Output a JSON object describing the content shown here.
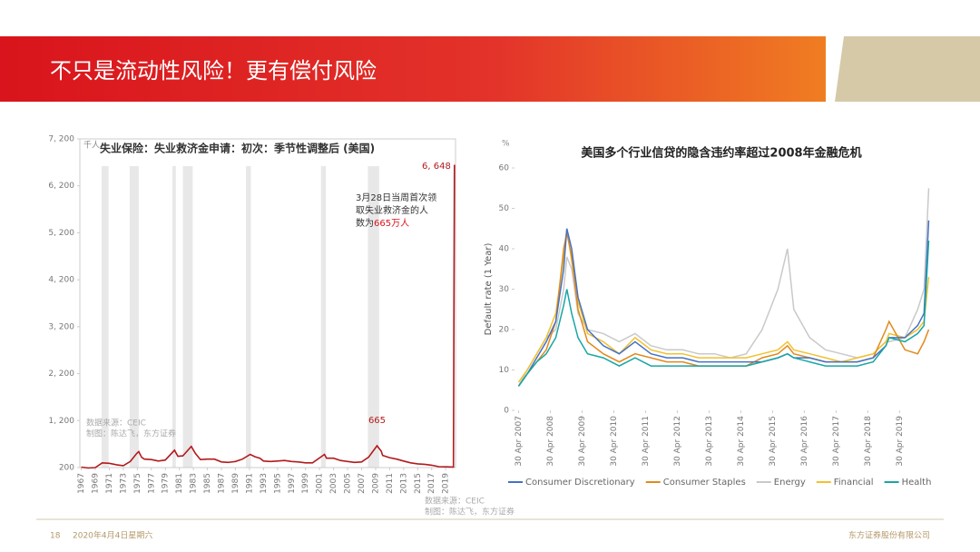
{
  "header": {
    "title": "不只是流动性风险！更有偿付风险"
  },
  "footer": {
    "page": "18",
    "date": "2020年4月4日星期六",
    "company": "东方证券股份有限公司"
  },
  "chart_data": [
    {
      "type": "line",
      "title": "失业保险：失业救济金申请：初次：季节性调整后 (美国)",
      "unit": "千人",
      "source": [
        "数据来源：CEIC",
        "制图：陈达飞，东方证券"
      ],
      "callout": [
        "3月28日当周首次领",
        "取失业救济金的人",
        "数为",
        "665万人"
      ],
      "xlim": [
        1966.8,
        2020.4
      ],
      "ylim": [
        200,
        7200
      ],
      "yticks": [
        200,
        {
          "value": 1200,
          "label": "1, 200"
        },
        {
          "value": 2200,
          "label": "2, 200"
        },
        {
          "value": 3200,
          "label": "3, 200"
        },
        {
          "value": 4200,
          "label": "4, 200"
        },
        {
          "value": 5200,
          "label": "5, 200"
        },
        {
          "value": 6200,
          "label": "6, 200"
        },
        {
          "value": 7200,
          "label": "7, 200"
        }
      ],
      "xticks": [
        1967,
        1969,
        1971,
        1973,
        1975,
        1977,
        1979,
        1981,
        1983,
        1985,
        1987,
        1989,
        1991,
        1993,
        1995,
        1997,
        1999,
        2001,
        2003,
        2005,
        2007,
        2009,
        2011,
        2013,
        2015,
        2017,
        2019
      ],
      "shaded_periods": [
        [
          1969.9,
          1970.9
        ],
        [
          1973.9,
          1975.2
        ],
        [
          1980.0,
          1980.5
        ],
        [
          1981.5,
          1982.9
        ],
        [
          1990.5,
          1991.2
        ],
        [
          2001.2,
          2001.9
        ],
        [
          2007.9,
          2009.5
        ]
      ],
      "x": [
        1967,
        1968,
        1969,
        1970,
        1971,
        1972,
        1973,
        1974,
        1974.9,
        1975.2,
        1975.6,
        1976,
        1977,
        1978,
        1979,
        1980.3,
        1980.8,
        1981.5,
        1982.7,
        1983.3,
        1984,
        1985,
        1986,
        1987,
        1988,
        1989,
        1990,
        1991.1,
        1991.8,
        1992.5,
        1993,
        1994,
        1995,
        1996,
        1997,
        1998,
        1999,
        2000,
        2001.7,
        2002,
        2003,
        2004,
        2005,
        2006,
        2007,
        2008,
        2009.2,
        2009.8,
        2010,
        2011,
        2012,
        2013,
        2014,
        2015,
        2016,
        2017,
        2018,
        2019,
        2020.1,
        2020.17,
        2020.25
      ],
      "series": [
        {
          "color": "#b3191c",
          "values": [
            210,
            190,
            200,
            300,
            290,
            260,
            240,
            330,
            500,
            540,
            420,
            380,
            370,
            340,
            360,
            570,
            440,
            450,
            650,
            500,
            370,
            380,
            380,
            320,
            310,
            330,
            380,
            480,
            430,
            400,
            340,
            330,
            340,
            350,
            330,
            320,
            300,
            300,
            480,
            400,
            400,
            350,
            330,
            310,
            320,
            420,
            665,
            550,
            460,
            410,
            380,
            340,
            300,
            280,
            270,
            250,
            220,
            215,
            211,
            3307,
            6648
          ],
          "value_labels": [
            null,
            null,
            null,
            null,
            null,
            null,
            null,
            null,
            null,
            null,
            null,
            null,
            null,
            null,
            null,
            null,
            null,
            null,
            null,
            null,
            null,
            null,
            null,
            null,
            null,
            null,
            null,
            null,
            null,
            null,
            null,
            null,
            null,
            null,
            null,
            null,
            null,
            null,
            null,
            null,
            null,
            null,
            null,
            null,
            null,
            null,
            "665",
            null,
            null,
            null,
            null,
            null,
            null,
            null,
            null,
            null,
            null,
            null,
            null,
            null,
            "6, 648"
          ]
        }
      ]
    },
    {
      "type": "line",
      "title": "美国多个行业信贷的隐含违约率超过2008年金融危机",
      "unit": "%",
      "ylabel": "Default rate (1 Year)",
      "source": [
        "数据来源：CEIC",
        "制图：陈达飞，东方证券"
      ],
      "xlim": [
        2007.2,
        2020.35
      ],
      "ylim": [
        0,
        60
      ],
      "yticks": [
        0,
        10,
        20,
        30,
        40,
        50,
        60
      ],
      "xticks": [
        {
          "value": 2007.33,
          "label": "30 Apr 2007"
        },
        {
          "value": 2008.33,
          "label": "30 Apr 2008"
        },
        {
          "value": 2009.33,
          "label": "30 Apr 2009"
        },
        {
          "value": 2010.33,
          "label": "30 Apr 2010"
        },
        {
          "value": 2011.33,
          "label": "30 Apr 2011"
        },
        {
          "value": 2012.33,
          "label": "30 Apr 2012"
        },
        {
          "value": 2013.33,
          "label": "30 Apr 2013"
        },
        {
          "value": 2014.33,
          "label": "30 Apr 2014"
        },
        {
          "value": 2015.33,
          "label": "30 Apr 2015"
        },
        {
          "value": 2016.33,
          "label": "30 Apr 2016"
        },
        {
          "value": 2017.33,
          "label": "30 Apr 2017"
        },
        {
          "value": 2018.33,
          "label": "30 Apr 2018"
        },
        {
          "value": 2019.33,
          "label": "30 Apr 2019"
        }
      ],
      "x": [
        2007.33,
        2007.6,
        2007.9,
        2008.2,
        2008.5,
        2008.75,
        2008.85,
        2009.0,
        2009.2,
        2009.5,
        2010.0,
        2010.5,
        2011.0,
        2011.5,
        2012.0,
        2012.5,
        2013.0,
        2013.5,
        2014.0,
        2014.5,
        2015.0,
        2015.5,
        2015.8,
        2016.0,
        2016.5,
        2017.0,
        2017.5,
        2018.0,
        2018.5,
        2018.9,
        2019.0,
        2019.5,
        2019.9,
        2020.1,
        2020.25
      ],
      "series": [
        {
          "name": "Energy",
          "color": "#c9c9c9",
          "values": [
            6,
            10,
            14,
            18,
            20,
            30,
            38,
            35,
            24,
            20,
            19,
            17,
            19,
            16,
            15,
            15,
            14,
            14,
            13,
            14,
            20,
            30,
            40,
            25,
            18,
            15,
            14,
            13,
            14,
            17,
            17,
            18,
            25,
            30,
            55
          ]
        },
        {
          "name": "Financial",
          "color": "#f2c12e",
          "values": [
            7,
            10,
            14,
            18,
            24,
            38,
            45,
            37,
            27,
            19,
            17,
            14,
            18,
            15,
            14,
            14,
            13,
            13,
            13,
            13,
            14,
            15,
            17,
            15,
            14,
            13,
            12,
            13,
            14,
            17,
            19,
            18,
            20,
            22,
            33
          ]
        },
        {
          "name": "Consumer Staples",
          "color": "#e08a1e",
          "values": [
            6,
            9,
            12,
            15,
            22,
            40,
            44,
            38,
            25,
            17,
            14,
            12,
            14,
            13,
            12,
            12,
            11,
            11,
            11,
            11,
            13,
            14,
            16,
            14,
            13,
            12,
            12,
            12,
            13,
            20,
            22,
            15,
            14,
            17,
            20
          ]
        },
        {
          "name": "Consumer Discretionary",
          "color": "#4472c4",
          "values": [
            6,
            9,
            13,
            17,
            22,
            35,
            45,
            40,
            28,
            20,
            16,
            14,
            17,
            14,
            13,
            13,
            12,
            12,
            12,
            12,
            12,
            13,
            14,
            13,
            13,
            12,
            12,
            12,
            13,
            16,
            18,
            18,
            21,
            24,
            47
          ]
        },
        {
          "name": "Health",
          "color": "#1aa5a5",
          "values": [
            6,
            9,
            12,
            14,
            18,
            26,
            30,
            24,
            18,
            14,
            13,
            11,
            13,
            11,
            11,
            11,
            11,
            11,
            11,
            11,
            12,
            13,
            14,
            13,
            12,
            11,
            11,
            11,
            12,
            16,
            18,
            17,
            19,
            21,
            42
          ]
        }
      ],
      "legend_order": [
        3,
        2,
        0,
        1,
        4
      ]
    }
  ]
}
